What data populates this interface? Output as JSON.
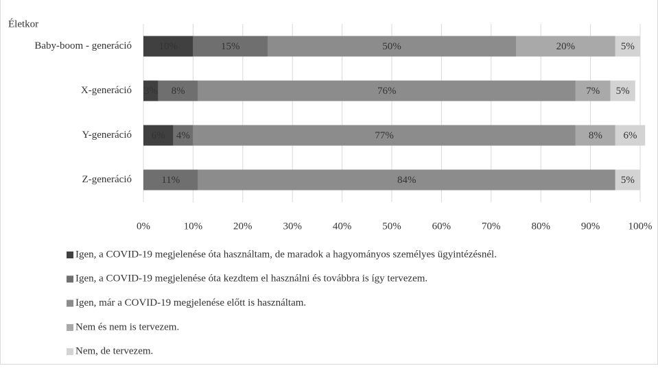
{
  "chart_data": {
    "type": "stacked_bar_horizontal",
    "y_axis_label": "Életkor",
    "categories": [
      "Baby-boom - generáció",
      "X-generáció",
      "Y-generáció",
      "Z-generáció"
    ],
    "series": [
      {
        "name": "Igen, a COVID-19 megjelenése óta használtam, de maradok a hagyományos személyes ügyintézésnél.",
        "color": "#404040",
        "values": [
          10,
          3,
          6,
          null
        ],
        "value_labels": [
          "10%",
          "3%",
          "6%",
          null
        ]
      },
      {
        "name": "Igen, a COVID-19 megjelenése óta kezdtem el használni és továbbra is így tervezem.",
        "color": "#6f6f6f",
        "values": [
          15,
          8,
          4,
          11
        ],
        "value_labels": [
          "15%",
          "8%",
          "4%",
          "11%"
        ]
      },
      {
        "name": "Igen, már a COVID-19 megjelenése előtt is használtam.",
        "color": "#8c8c8c",
        "values": [
          50,
          76,
          77,
          84
        ],
        "value_labels": [
          "50%",
          "76%",
          "77%",
          "84%"
        ]
      },
      {
        "name": "Nem és nem is tervezem.",
        "color": "#a9a9a9",
        "values": [
          20,
          7,
          8,
          null
        ],
        "value_labels": [
          "20%",
          "7%",
          "8%",
          null
        ]
      },
      {
        "name": "Nem, de tervezem.",
        "color": "#d3d3d3",
        "values": [
          5,
          5,
          6,
          5
        ],
        "value_labels": [
          "5%",
          "5%",
          "6%",
          "5%"
        ]
      }
    ],
    "xlim": [
      0,
      100
    ],
    "xticks": [
      {
        "value": 0,
        "label": "0%"
      },
      {
        "value": 10,
        "label": "10%"
      },
      {
        "value": 20,
        "label": "20%"
      },
      {
        "value": 30,
        "label": "30%"
      },
      {
        "value": 40,
        "label": "40%"
      },
      {
        "value": 50,
        "label": "50%"
      },
      {
        "value": 60,
        "label": "60%"
      },
      {
        "value": 70,
        "label": "70%"
      },
      {
        "value": 80,
        "label": "80%"
      },
      {
        "value": 90,
        "label": "90%"
      },
      {
        "value": 100,
        "label": "100%"
      }
    ],
    "grid": true,
    "legend": "bottom"
  }
}
